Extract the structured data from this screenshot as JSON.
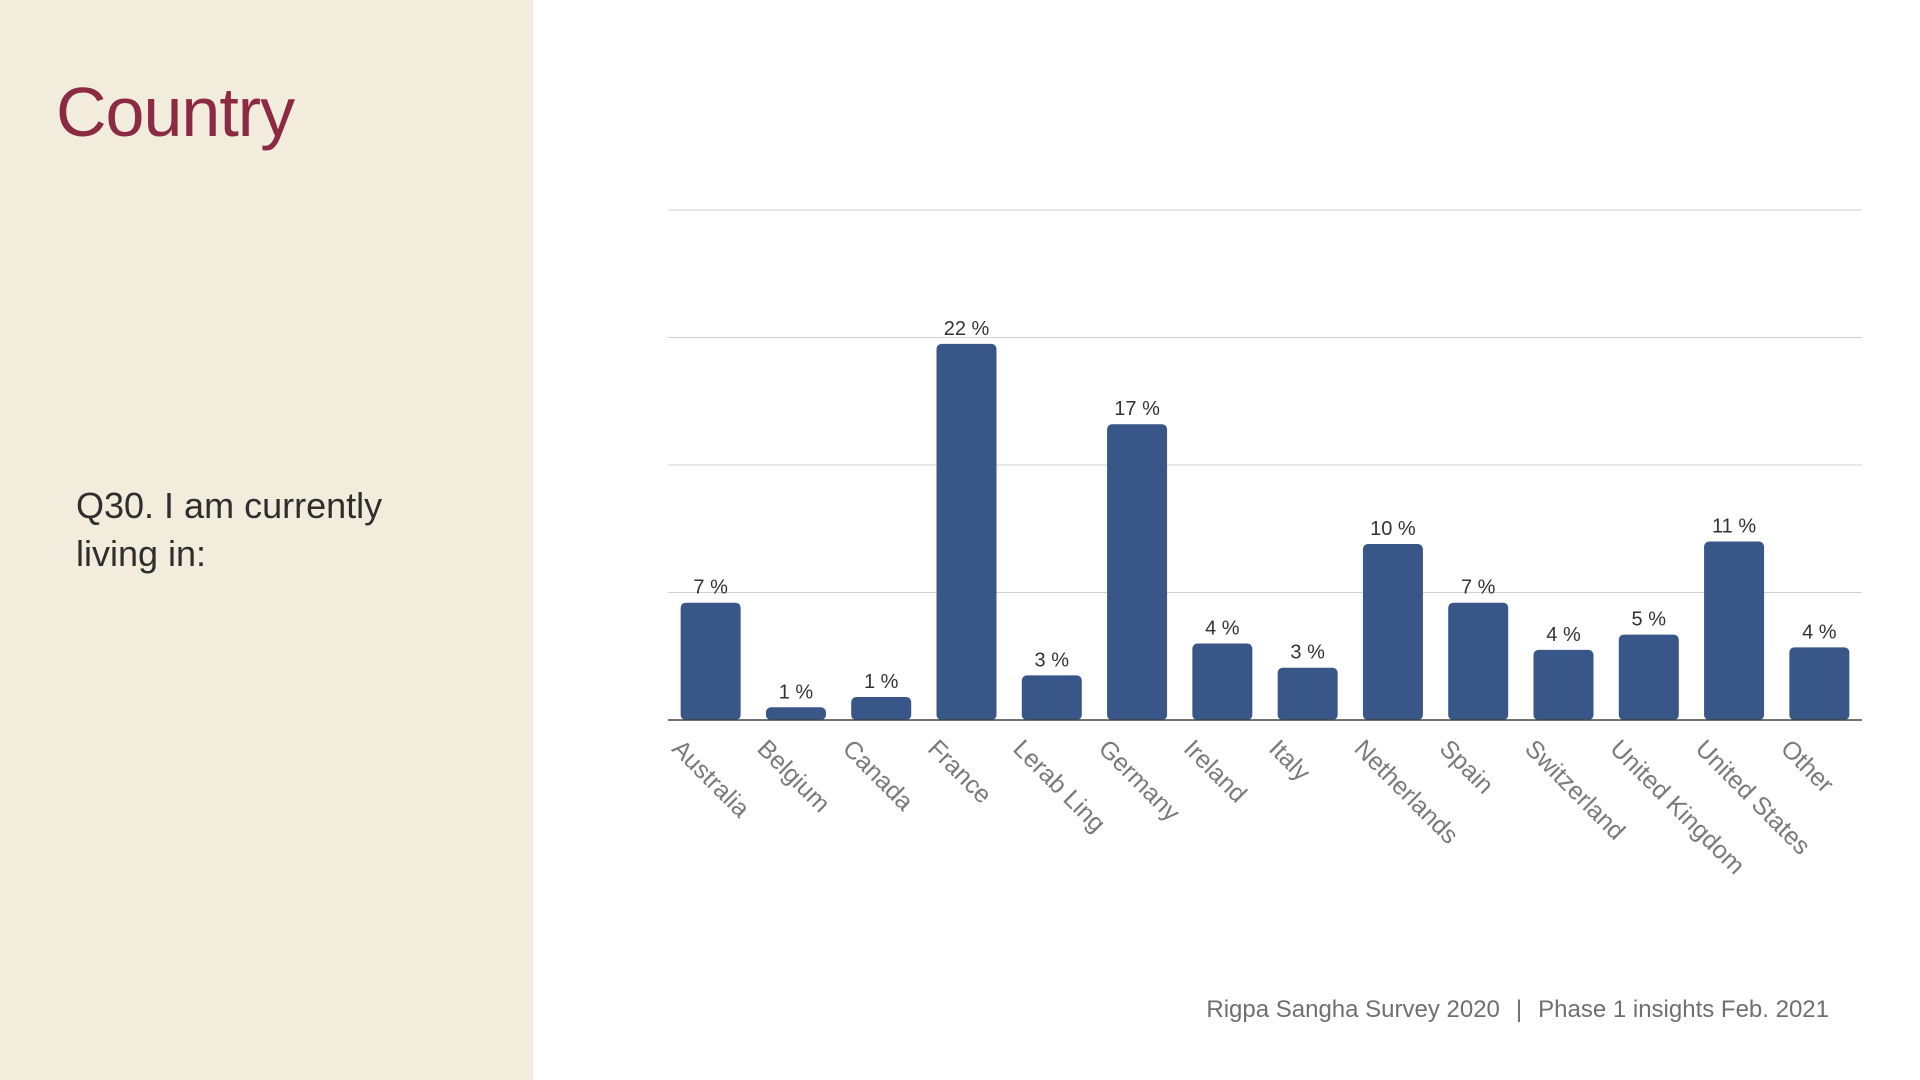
{
  "slide": {
    "title": "Country",
    "question": "Q30. I am currently living in:",
    "footer_left": "Rigpa Sangha Survey 2020",
    "footer_sep": "|",
    "footer_right": "Phase 1 insights Feb. 2021"
  },
  "colors": {
    "bar": "#385687",
    "title": "#8b2a42",
    "panel": "#f2ecdc",
    "grid": "#d0d0d0",
    "axis": "#444444",
    "label": "#333333",
    "tick": "#7a7a7a"
  },
  "chart_data": {
    "type": "bar",
    "title": "",
    "xlabel": "",
    "ylabel": "",
    "ylim": [
      0,
      40
    ],
    "grid": true,
    "gridlines": [
      10,
      20,
      30,
      40
    ],
    "categories": [
      "Australia",
      "Belgium",
      "Canada",
      "France",
      "Lerab Ling",
      "Germany",
      "Ireland",
      "Italy",
      "Netherlands",
      "Spain",
      "Switzerland",
      "United Kingdom",
      "United States",
      "Other"
    ],
    "values": [
      9.2,
      1.0,
      1.8,
      29.5,
      3.5,
      23.2,
      6.0,
      4.1,
      13.8,
      9.2,
      5.5,
      6.7,
      14.0,
      5.7
    ],
    "labels": [
      "7 %",
      "1 %",
      "1 %",
      "22 %",
      "3 %",
      "17 %",
      "4 %",
      "3 %",
      "10 %",
      "7 %",
      "4 %",
      "5 %",
      "11 %",
      "4 %"
    ]
  }
}
